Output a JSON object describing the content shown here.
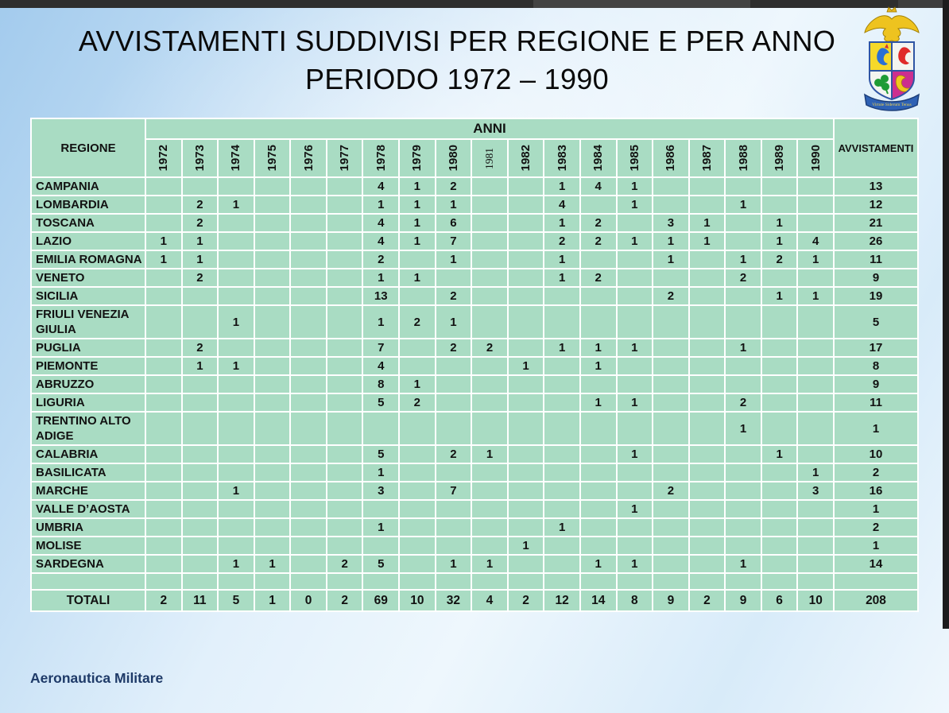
{
  "window": {
    "topbar_color": "#2e2e2e",
    "edge_strip_color": "#1c1c1c"
  },
  "title": {
    "line1": "AVVISTAMENTI SUDDIVISI PER REGIONE E PER ANNO",
    "line2": "PERIODO 1972 – 1990"
  },
  "footer": {
    "credit": "Aeronautica Militare"
  },
  "logo": {
    "name": "aeronautica-militare-crest",
    "motto": "Virtute Siderum Tenus"
  },
  "colors": {
    "cell_green": "#a9dcc3",
    "grid_border": "#ffffff",
    "title_text": "#0a0a0a",
    "footer_text": "#1e3a68",
    "background_blue": "#bcdaf3"
  },
  "chart_data": {
    "type": "table",
    "title": "AVVISTAMENTI SUDDIVISI PER REGIONE E PER ANNO — PERIODO 1972 – 1990",
    "region_header": "REGIONE",
    "group_header": "ANNI",
    "total_col_header": "AVVISTAMENTI",
    "years": [
      "1972",
      "1973",
      "1974",
      "1975",
      "1976",
      "1977",
      "1978",
      "1979",
      "1980",
      "1981",
      "1982",
      "1983",
      "1984",
      "1985",
      "1986",
      "1987",
      "1988",
      "1989",
      "1990"
    ],
    "serif_year": "1981",
    "rows": [
      {
        "region": "CAMPANIA",
        "values": [
          "",
          "",
          "",
          "",
          "",
          "",
          "4",
          "1",
          "2",
          "",
          "",
          "1",
          "4",
          "1",
          "",
          "",
          "",
          "",
          ""
        ],
        "total": "13"
      },
      {
        "region": "LOMBARDIA",
        "values": [
          "",
          "2",
          "1",
          "",
          "",
          "",
          "1",
          "1",
          "1",
          "",
          "",
          "4",
          "",
          "1",
          "",
          "",
          "1",
          "",
          ""
        ],
        "total": "12"
      },
      {
        "region": "TOSCANA",
        "values": [
          "",
          "2",
          "",
          "",
          "",
          "",
          "4",
          "1",
          "6",
          "",
          "",
          "1",
          "2",
          "",
          "3",
          "1",
          "",
          "1",
          ""
        ],
        "total": "21"
      },
      {
        "region": "LAZIO",
        "values": [
          "1",
          "1",
          "",
          "",
          "",
          "",
          "4",
          "1",
          "7",
          "",
          "",
          "2",
          "2",
          "1",
          "1",
          "1",
          "",
          "1",
          "4"
        ],
        "total": "26"
      },
      {
        "region": "EMILIA ROMAGNA",
        "values": [
          "1",
          "1",
          "",
          "",
          "",
          "",
          "2",
          "",
          "1",
          "",
          "",
          "1",
          "",
          "",
          "1",
          "",
          "1",
          "2",
          "1"
        ],
        "total": "11"
      },
      {
        "region": "VENETO",
        "values": [
          "",
          "2",
          "",
          "",
          "",
          "",
          "1",
          "1",
          "",
          "",
          "",
          "1",
          "2",
          "",
          "",
          "",
          "2",
          "",
          ""
        ],
        "total": "9"
      },
      {
        "region": "SICILIA",
        "values": [
          "",
          "",
          "",
          "",
          "",
          "",
          "13",
          "",
          "2",
          "",
          "",
          "",
          "",
          "",
          "2",
          "",
          "",
          "1",
          "1"
        ],
        "total": "19"
      },
      {
        "region": "FRIULI VENEZIA GIULIA",
        "values": [
          "",
          "",
          "1",
          "",
          "",
          "",
          "1",
          "2",
          "1",
          "",
          "",
          "",
          "",
          "",
          "",
          "",
          "",
          "",
          ""
        ],
        "total": "5"
      },
      {
        "region": "PUGLIA",
        "values": [
          "",
          "2",
          "",
          "",
          "",
          "",
          "7",
          "",
          "2",
          "2",
          "",
          "1",
          "1",
          "1",
          "",
          "",
          "1",
          "",
          ""
        ],
        "total": "17"
      },
      {
        "region": "PIEMONTE",
        "values": [
          "",
          "1",
          "1",
          "",
          "",
          "",
          "4",
          "",
          "",
          "",
          "1",
          "",
          "1",
          "",
          "",
          "",
          "",
          "",
          ""
        ],
        "total": "8"
      },
      {
        "region": "ABRUZZO",
        "values": [
          "",
          "",
          "",
          "",
          "",
          "",
          "8",
          "1",
          "",
          "",
          "",
          "",
          "",
          "",
          "",
          "",
          "",
          "",
          ""
        ],
        "total": "9"
      },
      {
        "region": "LIGURIA",
        "values": [
          "",
          "",
          "",
          "",
          "",
          "",
          "5",
          "2",
          "",
          "",
          "",
          "",
          "1",
          "1",
          "",
          "",
          "2",
          "",
          ""
        ],
        "total": "11"
      },
      {
        "region": "TRENTINO ALTO ADIGE",
        "values": [
          "",
          "",
          "",
          "",
          "",
          "",
          "",
          "",
          "",
          "",
          "",
          "",
          "",
          "",
          "",
          "",
          "1",
          "",
          ""
        ],
        "total": "1"
      },
      {
        "region": "CALABRIA",
        "values": [
          "",
          "",
          "",
          "",
          "",
          "",
          "5",
          "",
          "2",
          "1",
          "",
          "",
          "",
          "1",
          "",
          "",
          "",
          "1",
          ""
        ],
        "total": "10"
      },
      {
        "region": "BASILICATA",
        "values": [
          "",
          "",
          "",
          "",
          "",
          "",
          "1",
          "",
          "",
          "",
          "",
          "",
          "",
          "",
          "",
          "",
          "",
          "",
          "1"
        ],
        "total": "2"
      },
      {
        "region": "MARCHE",
        "values": [
          "",
          "",
          "1",
          "",
          "",
          "",
          "3",
          "",
          "7",
          "",
          "",
          "",
          "",
          "",
          "2",
          "",
          "",
          "",
          "3"
        ],
        "total": "16"
      },
      {
        "region": "VALLE D’AOSTA",
        "values": [
          "",
          "",
          "",
          "",
          "",
          "",
          "",
          "",
          "",
          "",
          "",
          "",
          "",
          "1",
          "",
          "",
          "",
          "",
          ""
        ],
        "total": "1"
      },
      {
        "region": "UMBRIA",
        "values": [
          "",
          "",
          "",
          "",
          "",
          "",
          "1",
          "",
          "",
          "",
          "",
          "1",
          "",
          "",
          "",
          "",
          "",
          "",
          ""
        ],
        "total": "2"
      },
      {
        "region": "MOLISE",
        "values": [
          "",
          "",
          "",
          "",
          "",
          "",
          "",
          "",
          "",
          "",
          "1",
          "",
          "",
          "",
          "",
          "",
          "",
          "",
          ""
        ],
        "total": "1"
      },
      {
        "region": "SARDEGNA",
        "values": [
          "",
          "",
          "1",
          "1",
          "",
          "2",
          "5",
          "",
          "1",
          "1",
          "",
          "",
          "1",
          "1",
          "",
          "",
          "1",
          "",
          ""
        ],
        "total": "14"
      }
    ],
    "empty_row": true,
    "totals": {
      "label": "TOTALI",
      "values": [
        "2",
        "11",
        "5",
        "1",
        "0",
        "2",
        "69",
        "10",
        "32",
        "4",
        "2",
        "12",
        "14",
        "8",
        "9",
        "2",
        "9",
        "6",
        "10"
      ],
      "total": "208"
    }
  }
}
